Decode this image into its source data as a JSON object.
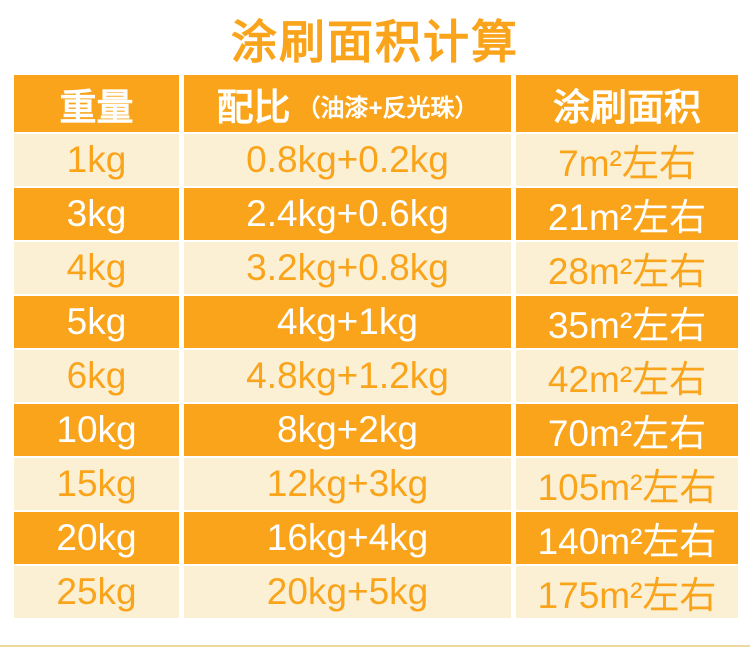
{
  "title": "涂刷面积计算",
  "colors": {
    "orange": "#F9A41B",
    "cream": "#FBF0D3",
    "header_text": "#FFFFFF",
    "light_row_text": "#F9A41B",
    "dark_row_text": "#FFFFFF",
    "title_text": "#F9A41B",
    "bottom_line": "#EDD9A0"
  },
  "chart_data": {
    "type": "table",
    "title": "涂刷面积计算",
    "columns": [
      "重量",
      "配比（油漆+反光珠）",
      "涂刷面积"
    ],
    "header": {
      "col1": "重量",
      "col2_main": "配比",
      "col2_sub": "（油漆+反光珠）",
      "col3": "涂刷面积"
    },
    "rows": [
      {
        "weight": "1kg",
        "ratio": "0.8kg+0.2kg",
        "area": "7m²左右"
      },
      {
        "weight": "3kg",
        "ratio": "2.4kg+0.6kg",
        "area": "21m²左右"
      },
      {
        "weight": "4kg",
        "ratio": "3.2kg+0.8kg",
        "area": "28m²左右"
      },
      {
        "weight": "5kg",
        "ratio": "4kg+1kg",
        "area": "35m²左右"
      },
      {
        "weight": "6kg",
        "ratio": "4.8kg+1.2kg",
        "area": "42m²左右"
      },
      {
        "weight": "10kg",
        "ratio": "8kg+2kg",
        "area": "70m²左右"
      },
      {
        "weight": "15kg",
        "ratio": "12kg+3kg",
        "area": "105m²左右"
      },
      {
        "weight": "20kg",
        "ratio": "16kg+4kg",
        "area": "140m²左右"
      },
      {
        "weight": "25kg",
        "ratio": "20kg+5kg",
        "area": "175m²左右"
      }
    ]
  }
}
